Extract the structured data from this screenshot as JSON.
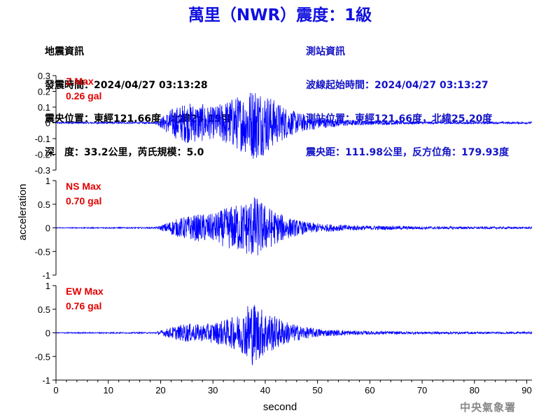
{
  "title": "萬里（NWR）震度：1級",
  "event": {
    "heading": "地震資訊",
    "time": "發震時間：2024/04/27 03:13:28",
    "epicenter": "震央位置：東經121.66度，北緯24.19度",
    "depth_mag": "深　度：33.2公里，芮氏規模：5.0"
  },
  "station": {
    "heading": "測站資訊",
    "wave_start": "波線起始時間：2024/04/27 03:13:27",
    "location": "測站位置：東經121.66度，北緯25.20度",
    "distance": "震央距：111.98公里，反方位角：179.93度"
  },
  "agency": "中央氣象署",
  "colors": {
    "title": "#1010e0",
    "trace": "#0000ff",
    "max_label": "#e00000",
    "station_info": "#1414c8"
  },
  "chart_data": {
    "type": "line",
    "xlabel": "second",
    "ylabel": "acceleration",
    "xlim": [
      0,
      91
    ],
    "xticks": [
      "0",
      "10",
      "20",
      "30",
      "40",
      "50",
      "60",
      "70",
      "80",
      "90"
    ],
    "xtick_values": [
      0,
      10,
      20,
      30,
      40,
      50,
      60,
      70,
      80,
      90
    ],
    "panels": [
      {
        "name": "Z",
        "max_label": "Z Max",
        "max_value": "0.26 gal",
        "ylim": [
          -0.3,
          0.3
        ],
        "yticks": [
          "0.3",
          "0.2",
          "0.1",
          "0",
          "-0.1",
          "-0.2",
          "-0.3"
        ],
        "ytick_values": [
          0.3,
          0.2,
          0.1,
          0,
          -0.1,
          -0.2,
          -0.3
        ],
        "envelope": [
          [
            0,
            0.005
          ],
          [
            19,
            0.006
          ],
          [
            20,
            0.03
          ],
          [
            22,
            0.09
          ],
          [
            25,
            0.13
          ],
          [
            28,
            0.12
          ],
          [
            30,
            0.1
          ],
          [
            33,
            0.15
          ],
          [
            36,
            0.19
          ],
          [
            38,
            0.24
          ],
          [
            40,
            0.2
          ],
          [
            42,
            0.14
          ],
          [
            45,
            0.08
          ],
          [
            48,
            0.05
          ],
          [
            52,
            0.03
          ],
          [
            58,
            0.015
          ],
          [
            70,
            0.008
          ],
          [
            91,
            0.006
          ]
        ]
      },
      {
        "name": "NS",
        "max_label": "NS Max",
        "max_value": "0.70 gal",
        "ylim": [
          -1,
          1
        ],
        "yticks": [
          "1",
          "0.5",
          "0",
          "-0.5",
          "-1"
        ],
        "ytick_values": [
          1,
          0.5,
          0,
          -0.5,
          -1
        ],
        "envelope": [
          [
            0,
            0.01
          ],
          [
            19,
            0.015
          ],
          [
            20,
            0.05
          ],
          [
            22,
            0.15
          ],
          [
            25,
            0.25
          ],
          [
            28,
            0.3
          ],
          [
            30,
            0.3
          ],
          [
            33,
            0.45
          ],
          [
            36,
            0.55
          ],
          [
            38,
            0.68
          ],
          [
            40,
            0.5
          ],
          [
            42,
            0.35
          ],
          [
            45,
            0.2
          ],
          [
            48,
            0.12
          ],
          [
            52,
            0.08
          ],
          [
            58,
            0.05
          ],
          [
            70,
            0.03
          ],
          [
            91,
            0.02
          ]
        ]
      },
      {
        "name": "EW",
        "max_label": "EW Max",
        "max_value": "0.76 gal",
        "ylim": [
          -1,
          1
        ],
        "yticks": [
          "1",
          "0.5",
          "0",
          "-0.5",
          "-1"
        ],
        "ytick_values": [
          1,
          0.5,
          0,
          -0.5,
          -1
        ],
        "envelope": [
          [
            0,
            0.01
          ],
          [
            19,
            0.015
          ],
          [
            20,
            0.05
          ],
          [
            22,
            0.12
          ],
          [
            25,
            0.2
          ],
          [
            28,
            0.18
          ],
          [
            30,
            0.22
          ],
          [
            33,
            0.3
          ],
          [
            36,
            0.45
          ],
          [
            37,
            0.74
          ],
          [
            39,
            0.55
          ],
          [
            42,
            0.35
          ],
          [
            45,
            0.2
          ],
          [
            48,
            0.12
          ],
          [
            52,
            0.07
          ],
          [
            58,
            0.04
          ],
          [
            70,
            0.025
          ],
          [
            91,
            0.02
          ]
        ]
      }
    ]
  }
}
